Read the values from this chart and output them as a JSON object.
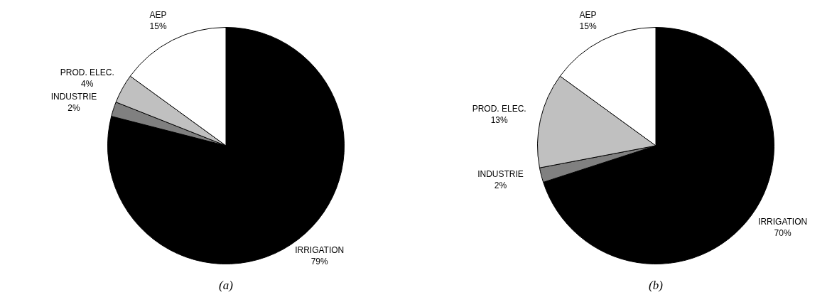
{
  "chart_data": [
    {
      "type": "pie",
      "title": "(a)",
      "categories": [
        "IRRIGATION",
        "INDUSTRIE",
        "PROD. ELEC.",
        "AEP"
      ],
      "values": [
        79,
        2,
        4,
        15
      ],
      "colors": [
        "#000000",
        "#808080",
        "#c0c0c0",
        "#ffffff"
      ],
      "value_labels": [
        "79%",
        "2%",
        "4%",
        "15%"
      ],
      "legend": false
    },
    {
      "type": "pie",
      "title": "(b)",
      "categories": [
        "IRRIGATION",
        "INDUSTRIE",
        "PROD. ELEC.",
        "AEP"
      ],
      "values": [
        70,
        2,
        13,
        15
      ],
      "colors": [
        "#000000",
        "#808080",
        "#c0c0c0",
        "#ffffff"
      ],
      "value_labels": [
        "70%",
        "2%",
        "13%",
        "15%"
      ],
      "legend": false
    }
  ]
}
